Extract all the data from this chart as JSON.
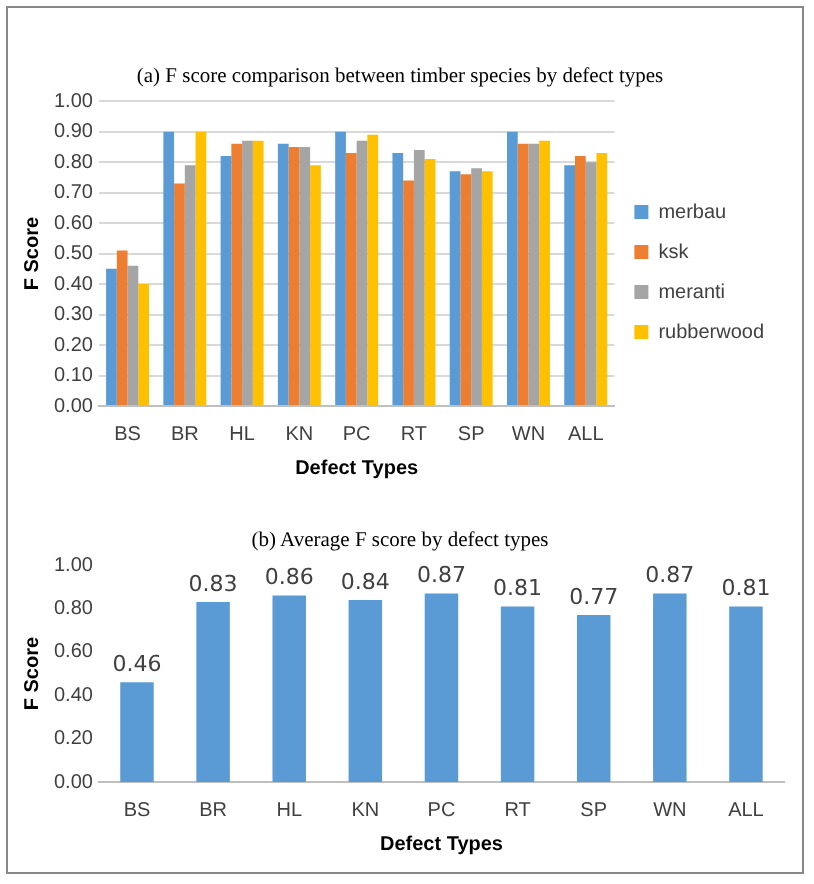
{
  "chart_data": [
    {
      "type": "bar",
      "title": "(a) F score comparison between timber species by defect types",
      "xlabel": "Defect Types",
      "ylabel": "F Score",
      "categories": [
        "BS",
        "BR",
        "HL",
        "KN",
        "PC",
        "RT",
        "SP",
        "WN",
        "ALL"
      ],
      "series": [
        {
          "name": "merbau",
          "color": "#5b9bd5",
          "values": [
            0.45,
            0.9,
            0.82,
            0.86,
            0.9,
            0.83,
            0.77,
            0.9,
            0.79
          ]
        },
        {
          "name": "ksk",
          "color": "#ed7d31",
          "values": [
            0.51,
            0.73,
            0.86,
            0.85,
            0.83,
            0.74,
            0.76,
            0.86,
            0.82
          ]
        },
        {
          "name": "meranti",
          "color": "#a5a5a5",
          "values": [
            0.46,
            0.79,
            0.87,
            0.85,
            0.87,
            0.84,
            0.78,
            0.86,
            0.8
          ]
        },
        {
          "name": "rubberwood",
          "color": "#ffc000",
          "values": [
            0.4,
            0.9,
            0.87,
            0.79,
            0.89,
            0.81,
            0.77,
            0.87,
            0.83
          ]
        }
      ],
      "ylim": [
        0,
        1
      ],
      "yticks": [
        {
          "value": 0,
          "label": "0.00"
        },
        {
          "value": 0.1,
          "label": "0.10"
        },
        {
          "value": 0.2,
          "label": "0.20"
        },
        {
          "value": 0.3,
          "label": "0.30"
        },
        {
          "value": 0.4,
          "label": "0.40"
        },
        {
          "value": 0.5,
          "label": "0.50"
        },
        {
          "value": 0.6,
          "label": "0.60"
        },
        {
          "value": 0.7,
          "label": "0.70"
        },
        {
          "value": 0.8,
          "label": "0.80"
        },
        {
          "value": 0.9,
          "label": "0.90"
        },
        {
          "value": 1,
          "label": "1.00"
        }
      ],
      "grid": "y",
      "legend": "right"
    },
    {
      "type": "bar",
      "title": "(b) Average F score by defect types",
      "xlabel": "Defect Types",
      "ylabel": "F Score",
      "categories": [
        "BS",
        "BR",
        "HL",
        "KN",
        "PC",
        "RT",
        "SP",
        "WN",
        "ALL"
      ],
      "values": [
        0.46,
        0.83,
        0.86,
        0.84,
        0.87,
        0.81,
        0.77,
        0.87,
        0.81
      ],
      "color": "#5b9bd5",
      "ylim": [
        0,
        1
      ],
      "yticks": [
        {
          "value": 0,
          "label": "0.00"
        },
        {
          "value": 0.2,
          "label": "0.20"
        },
        {
          "value": 0.4,
          "label": "0.40"
        },
        {
          "value": 0.6,
          "label": "0.60"
        },
        {
          "value": 0.8,
          "label": "0.80"
        },
        {
          "value": 1,
          "label": "1.00"
        }
      ],
      "grid": false,
      "legend": false,
      "data_labels": true
    }
  ]
}
